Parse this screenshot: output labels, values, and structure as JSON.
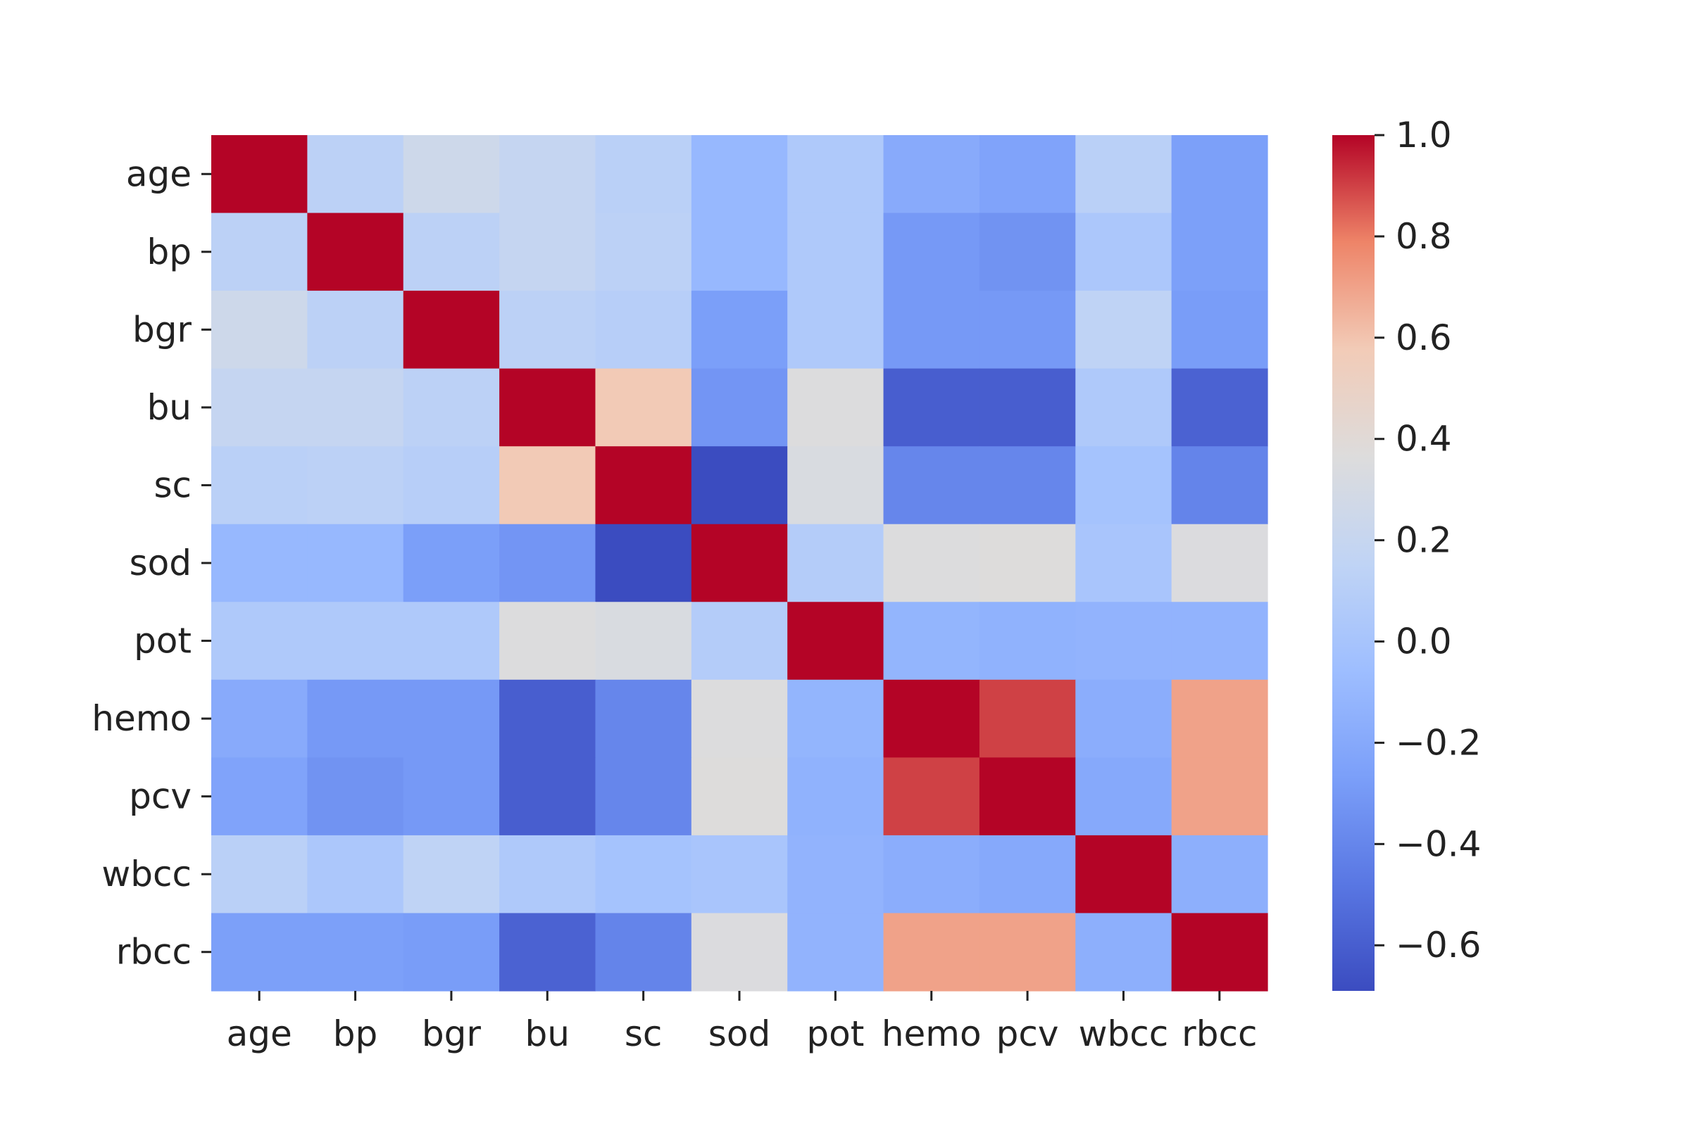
{
  "chart_data": {
    "type": "heatmap",
    "title": "",
    "xlabel": "",
    "ylabel": "",
    "x_categories": [
      "age",
      "bp",
      "bgr",
      "bu",
      "sc",
      "sod",
      "pot",
      "hemo",
      "pcv",
      "wbcc",
      "rbcc"
    ],
    "y_categories": [
      "age",
      "bp",
      "bgr",
      "bu",
      "sc",
      "sod",
      "pot",
      "hemo",
      "pcv",
      "wbcc",
      "rbcc"
    ],
    "values": [
      [
        1.0,
        0.13,
        0.25,
        0.19,
        0.12,
        -0.1,
        0.05,
        -0.19,
        -0.24,
        0.12,
        -0.26
      ],
      [
        0.13,
        1.0,
        0.13,
        0.19,
        0.13,
        -0.1,
        0.05,
        -0.3,
        -0.33,
        0.03,
        -0.26
      ],
      [
        0.25,
        0.13,
        1.0,
        0.13,
        0.1,
        -0.27,
        0.05,
        -0.3,
        -0.3,
        0.15,
        -0.28
      ],
      [
        0.19,
        0.19,
        0.13,
        1.0,
        0.58,
        -0.32,
        0.36,
        -0.6,
        -0.6,
        0.05,
        -0.58
      ],
      [
        0.12,
        0.13,
        0.1,
        0.58,
        1.0,
        -0.69,
        0.33,
        -0.4,
        -0.4,
        -0.01,
        -0.41
      ],
      [
        -0.1,
        -0.1,
        -0.27,
        -0.32,
        -0.69,
        1.0,
        0.08,
        0.36,
        0.37,
        0.01,
        0.35
      ],
      [
        0.05,
        0.05,
        0.05,
        0.36,
        0.33,
        0.08,
        1.0,
        -0.12,
        -0.14,
        -0.13,
        -0.13
      ],
      [
        -0.19,
        -0.3,
        -0.3,
        -0.6,
        -0.4,
        0.36,
        -0.12,
        1.0,
        0.9,
        -0.17,
        0.7
      ],
      [
        -0.24,
        -0.33,
        -0.3,
        -0.6,
        -0.4,
        0.37,
        -0.14,
        0.9,
        1.0,
        -0.2,
        0.7
      ],
      [
        0.12,
        0.03,
        0.15,
        0.05,
        -0.01,
        0.01,
        -0.13,
        -0.17,
        -0.2,
        1.0,
        -0.16
      ],
      [
        -0.26,
        -0.26,
        -0.28,
        -0.58,
        -0.41,
        0.35,
        -0.13,
        0.7,
        0.7,
        -0.16,
        1.0
      ]
    ],
    "colormap": "coolwarm",
    "colorbar": {
      "vmin": -0.69,
      "vmax": 1.0,
      "ticks": [
        1.0,
        0.8,
        0.6,
        0.4,
        0.2,
        0.0,
        -0.2,
        -0.4,
        -0.6
      ],
      "tick_labels": [
        "1.0",
        "0.8",
        "0.6",
        "0.4",
        "0.2",
        "0.0",
        "−0.2",
        "−0.4",
        "−0.6"
      ]
    },
    "grid": false,
    "legend": "colorbar-right"
  }
}
